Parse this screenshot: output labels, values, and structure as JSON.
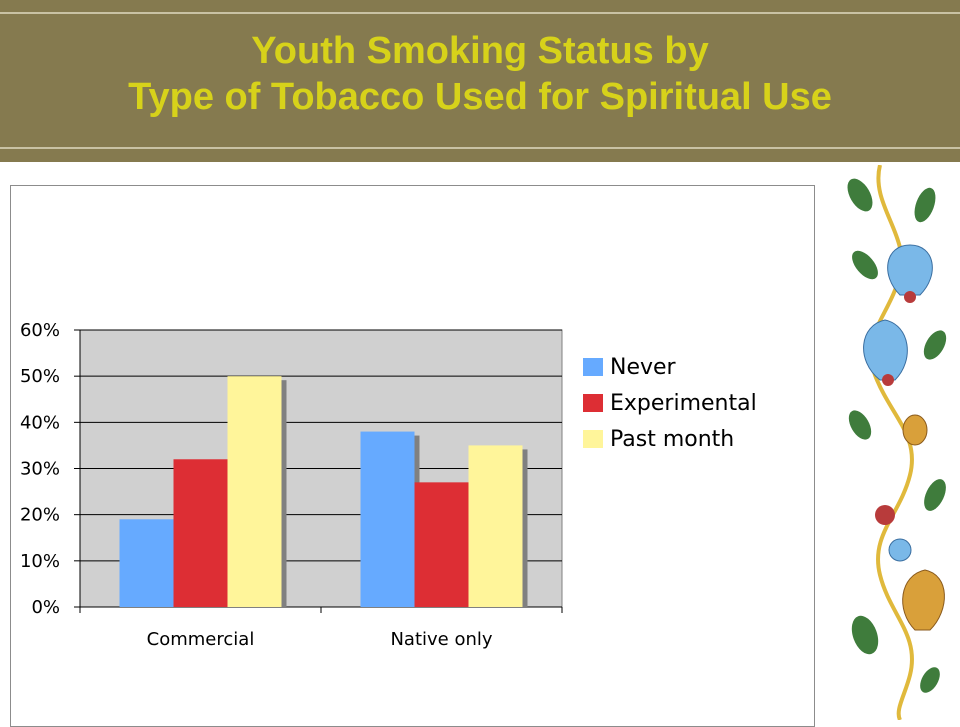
{
  "slide": {
    "title_line1": "Youth Smoking Status by",
    "title_line2": "Type of Tobacco Used for Spiritual Use"
  },
  "colors": {
    "banner": "#857a4f",
    "title": "#d7d21a",
    "plot_bg": "#d0d0d0"
  },
  "chart_data": {
    "type": "bar",
    "title": "",
    "xlabel": "",
    "ylabel": "",
    "categories": [
      "Commercial",
      "Native only"
    ],
    "series": [
      {
        "name": "Never",
        "values": [
          19,
          38
        ],
        "color": "#66aaff"
      },
      {
        "name": "Experimental",
        "values": [
          32,
          27
        ],
        "color": "#dd2e34"
      },
      {
        "name": "Past month",
        "values": [
          50,
          35
        ],
        "color": "#fff59a"
      }
    ],
    "ylim": [
      0,
      60
    ],
    "yticks": [
      "0%",
      "10%",
      "20%",
      "30%",
      "40%",
      "50%",
      "60%"
    ],
    "grid": true,
    "legend": "right"
  },
  "decoration": {
    "icon": "floral-vine-border-icon"
  }
}
